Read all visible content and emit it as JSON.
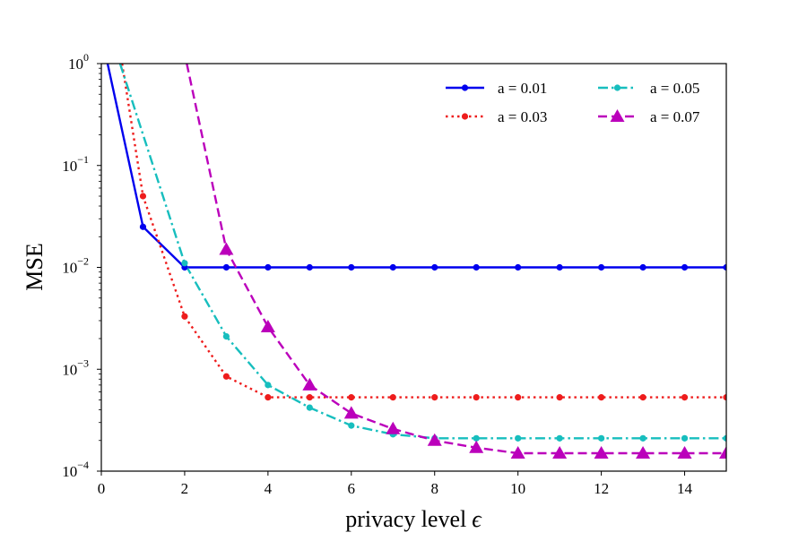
{
  "chart_data": {
    "type": "line",
    "title": "",
    "xlabel": "privacy level",
    "xlabel_symbol": "ϵ",
    "ylabel": "MSE",
    "yscale": "log",
    "xlim": [
      0,
      15
    ],
    "ylim": [
      0.0001,
      1
    ],
    "x_ticks": [
      0,
      2,
      4,
      6,
      8,
      10,
      12,
      14
    ],
    "x_tick_labels": [
      "0",
      "2",
      "4",
      "6",
      "8",
      "10",
      "12",
      "14"
    ],
    "y_ticks": [
      0.0001,
      0.001,
      0.01,
      0.1,
      1
    ],
    "y_tick_labels": [
      {
        "base": "10",
        "exp": "−4"
      },
      {
        "base": "10",
        "exp": "−3"
      },
      {
        "base": "10",
        "exp": "−2"
      },
      {
        "base": "10",
        "exp": "−1"
      },
      {
        "base": "10",
        "exp": "0"
      }
    ],
    "grid": false,
    "legend_position": "top-right",
    "series": [
      {
        "name": "a = 0.01",
        "color": "#0000ee",
        "dash": "solid",
        "marker": "circle",
        "line_start": {
          "x": 0.15,
          "y": 1
        },
        "x": [
          1,
          2,
          3,
          4,
          5,
          6,
          7,
          8,
          9,
          10,
          11,
          12,
          13,
          14,
          15
        ],
        "y": [
          0.025,
          0.01,
          0.01,
          0.01,
          0.01,
          0.01,
          0.01,
          0.01,
          0.01,
          0.01,
          0.01,
          0.01,
          0.01,
          0.01,
          0.01
        ]
      },
      {
        "name": "a = 0.03",
        "color": "#ee1c1c",
        "dash": "dotted",
        "marker": "circle",
        "line_start": {
          "x": 0.5,
          "y": 1
        },
        "x": [
          1,
          2,
          3,
          4,
          5,
          6,
          7,
          8,
          9,
          10,
          11,
          12,
          13,
          14,
          15
        ],
        "y": [
          0.05,
          0.0033,
          0.00085,
          0.00053,
          0.00053,
          0.00053,
          0.00053,
          0.00053,
          0.00053,
          0.00053,
          0.00053,
          0.00053,
          0.00053,
          0.00053,
          0.00053
        ]
      },
      {
        "name": "a = 0.05",
        "color": "#17bebe",
        "dash": "dashdot",
        "marker": "circle",
        "line_start": {
          "x": 0.45,
          "y": 1
        },
        "x": [
          2,
          3,
          4,
          5,
          6,
          7,
          8,
          9,
          10,
          11,
          12,
          13,
          14,
          15
        ],
        "y": [
          0.011,
          0.0021,
          0.0007,
          0.00042,
          0.00028,
          0.00023,
          0.00021,
          0.00021,
          0.00021,
          0.00021,
          0.00021,
          0.00021,
          0.00021,
          0.00021
        ]
      },
      {
        "name": "a = 0.07",
        "color": "#bb00bb",
        "dash": "dashed",
        "marker": "triangle",
        "line_start": {
          "x": 2.05,
          "y": 1
        },
        "x": [
          3,
          4,
          5,
          6,
          7,
          8,
          9,
          10,
          11,
          12,
          13,
          14,
          15
        ],
        "y": [
          0.015,
          0.0026,
          0.0007,
          0.00037,
          0.00026,
          0.0002,
          0.00017,
          0.00015,
          0.00015,
          0.00015,
          0.00015,
          0.00015,
          0.00015
        ]
      }
    ]
  }
}
